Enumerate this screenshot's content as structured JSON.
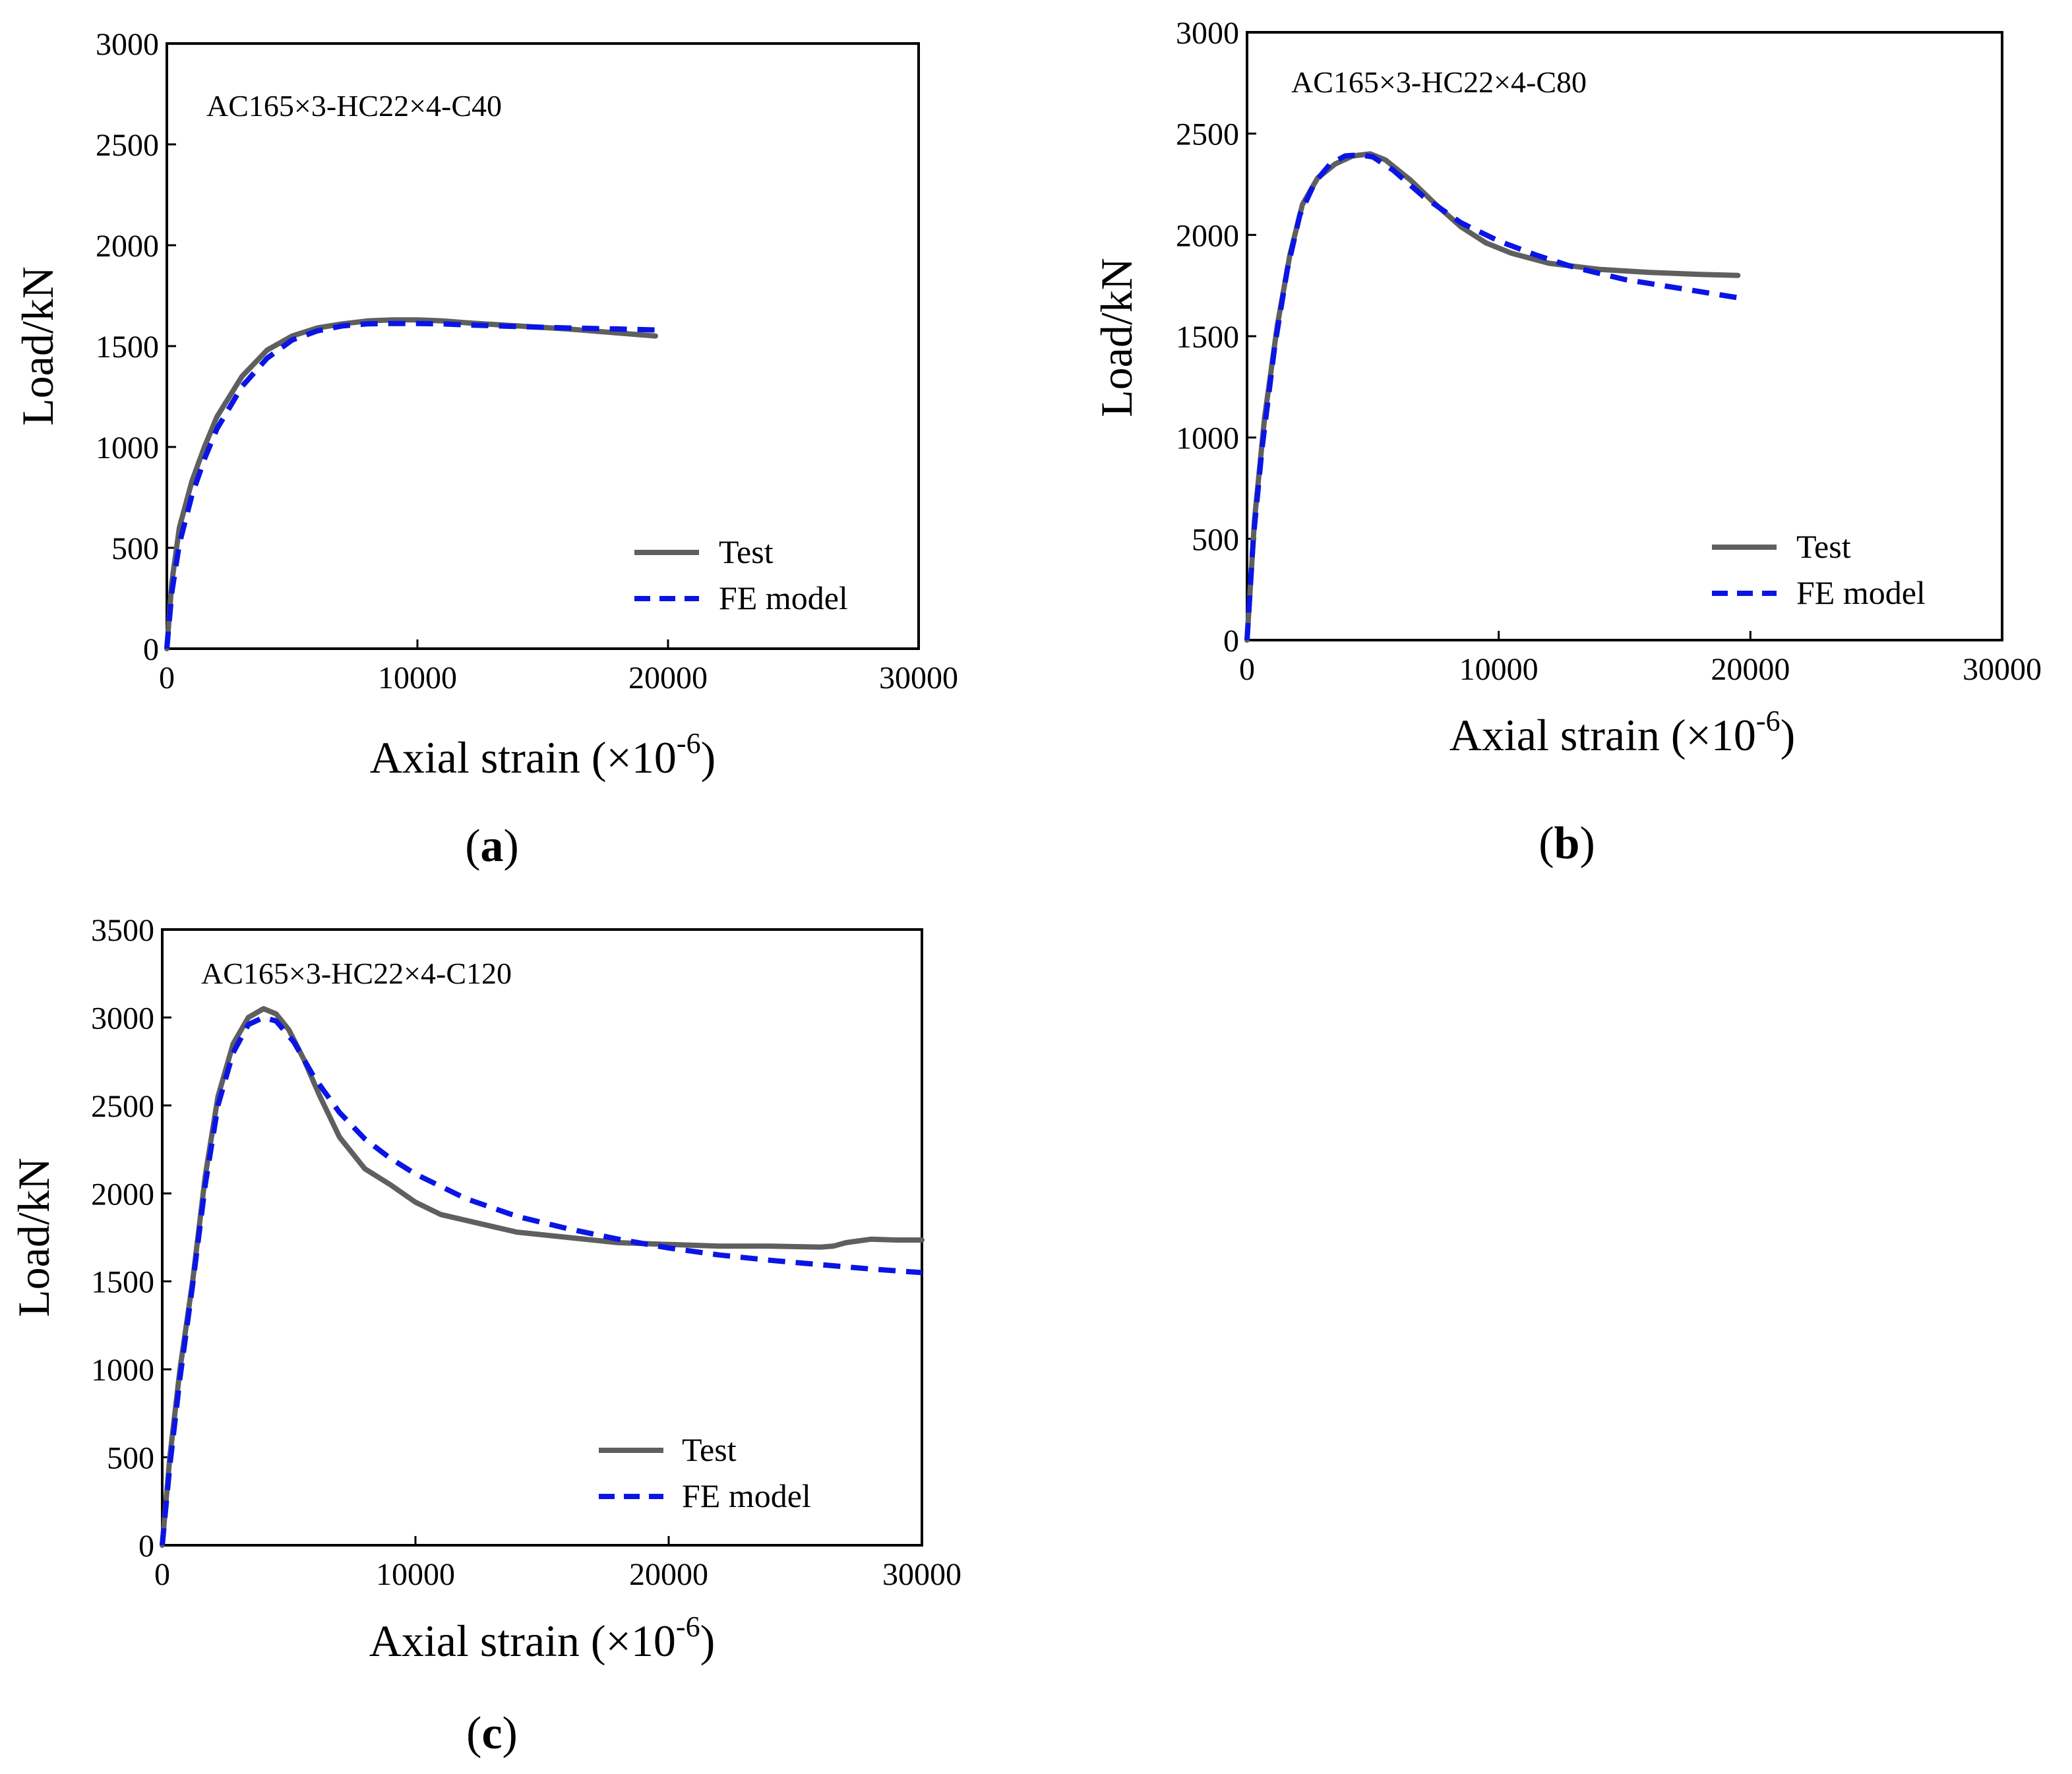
{
  "chart_data": [
    {
      "type": "line",
      "panel_label": "a",
      "title": "AC165×3-HC22×4-C40",
      "xlabel": "Axial strain (×10",
      "xlabel_exponent": "-6",
      "xlabel_suffix": ")",
      "ylabel": "Load/kN",
      "xlim": [
        0,
        30000
      ],
      "ylim": [
        0,
        3000
      ],
      "xticks": [
        0,
        10000,
        20000,
        30000
      ],
      "yticks": [
        0,
        500,
        1000,
        1500,
        2000,
        2500,
        3000
      ],
      "legend": {
        "position": "bottom-right",
        "entries": [
          "Test",
          "FE model"
        ]
      },
      "series": [
        {
          "name": "Test",
          "color": "#5f5f5f",
          "style": "solid",
          "x": [
            0,
            200,
            500,
            1000,
            1500,
            2000,
            3000,
            4000,
            5000,
            6000,
            7000,
            8000,
            9000,
            10000,
            11000,
            12000,
            14000,
            16000,
            18000,
            19500
          ],
          "y": [
            0,
            330,
            600,
            830,
            1000,
            1150,
            1350,
            1480,
            1550,
            1590,
            1610,
            1625,
            1630,
            1630,
            1625,
            1615,
            1600,
            1585,
            1565,
            1550
          ]
        },
        {
          "name": "FE model",
          "color": "#0a14e6",
          "style": "dashed",
          "x": [
            0,
            200,
            500,
            1000,
            1500,
            2000,
            3000,
            4000,
            5000,
            6000,
            7000,
            8000,
            9000,
            10000,
            11000,
            12000,
            14000,
            16000,
            18000,
            19500
          ],
          "y": [
            0,
            280,
            520,
            760,
            940,
            1090,
            1300,
            1440,
            1530,
            1575,
            1600,
            1610,
            1612,
            1612,
            1610,
            1605,
            1597,
            1590,
            1585,
            1580
          ]
        }
      ]
    },
    {
      "type": "line",
      "panel_label": "b",
      "title": "AC165×3-HC22×4-C80",
      "xlabel": "Axial strain (×10",
      "xlabel_exponent": "-6",
      "xlabel_suffix": ")",
      "ylabel": "Load/kN",
      "xlim": [
        0,
        30000
      ],
      "ylim": [
        0,
        3000
      ],
      "xticks": [
        0,
        10000,
        20000,
        30000
      ],
      "yticks": [
        0,
        500,
        1000,
        1500,
        2000,
        2500,
        3000
      ],
      "legend": {
        "position": "bottom-right",
        "entries": [
          "Test",
          "FE model"
        ]
      },
      "series": [
        {
          "name": "Test",
          "color": "#5f5f5f",
          "style": "solid",
          "x": [
            0,
            300,
            700,
            1200,
            1700,
            2200,
            2800,
            3500,
            4200,
            4900,
            5500,
            6500,
            7500,
            8500,
            9500,
            10500,
            12000,
            14000,
            16000,
            18000,
            19500
          ],
          "y": [
            0,
            600,
            1100,
            1550,
            1900,
            2150,
            2280,
            2350,
            2390,
            2400,
            2370,
            2270,
            2150,
            2040,
            1960,
            1910,
            1860,
            1830,
            1815,
            1805,
            1800
          ]
        },
        {
          "name": "FE model",
          "color": "#0a14e6",
          "style": "dashed",
          "x": [
            0,
            250,
            600,
            1100,
            1600,
            2100,
            2700,
            3300,
            3900,
            4500,
            5000,
            5800,
            7000,
            8500,
            10000,
            11500,
            13000,
            15000,
            17000,
            19500
          ],
          "y": [
            0,
            500,
            950,
            1450,
            1830,
            2100,
            2260,
            2350,
            2390,
            2395,
            2385,
            2320,
            2190,
            2060,
            1970,
            1900,
            1840,
            1780,
            1740,
            1690
          ]
        }
      ]
    },
    {
      "type": "line",
      "panel_label": "c",
      "title": "AC165×3-HC22×4-C120",
      "xlabel": "Axial strain (×10",
      "xlabel_exponent": "-6",
      "xlabel_suffix": ")",
      "ylabel": "Load/kN",
      "xlim": [
        0,
        30000
      ],
      "ylim": [
        0,
        3500
      ],
      "xticks": [
        0,
        10000,
        20000,
        30000
      ],
      "yticks": [
        0,
        500,
        1000,
        1500,
        2000,
        2500,
        3000,
        3500
      ],
      "legend": {
        "position": "bottom-right",
        "entries": [
          "Test",
          "FE model"
        ]
      },
      "series": [
        {
          "name": "Test",
          "color": "#5f5f5f",
          "style": "solid",
          "x": [
            0,
            300,
            700,
            1200,
            1700,
            2200,
            2800,
            3400,
            4000,
            4500,
            5000,
            5600,
            6200,
            7000,
            8000,
            9000,
            10000,
            11000,
            12500,
            14000,
            16000,
            18000,
            20000,
            22000,
            24000,
            26000,
            26500,
            27000,
            28000,
            29000,
            30000
          ],
          "y": [
            0,
            500,
            1000,
            1500,
            2100,
            2550,
            2850,
            3000,
            3050,
            3020,
            2930,
            2760,
            2560,
            2320,
            2140,
            2050,
            1950,
            1880,
            1830,
            1780,
            1750,
            1720,
            1710,
            1700,
            1700,
            1695,
            1700,
            1720,
            1740,
            1735,
            1735
          ]
        },
        {
          "name": "FE model",
          "color": "#0a14e6",
          "style": "dashed",
          "x": [
            0,
            300,
            700,
            1200,
            1700,
            2200,
            2800,
            3400,
            4000,
            4500,
            5200,
            6000,
            7000,
            8000,
            9000,
            10000,
            12000,
            14000,
            16000,
            18000,
            20000,
            22000,
            24000,
            26000,
            28000,
            30000
          ],
          "y": [
            0,
            450,
            950,
            1480,
            2050,
            2500,
            2800,
            2960,
            3000,
            2980,
            2860,
            2660,
            2460,
            2310,
            2200,
            2110,
            1970,
            1870,
            1800,
            1740,
            1690,
            1650,
            1620,
            1595,
            1570,
            1550
          ]
        }
      ]
    }
  ]
}
